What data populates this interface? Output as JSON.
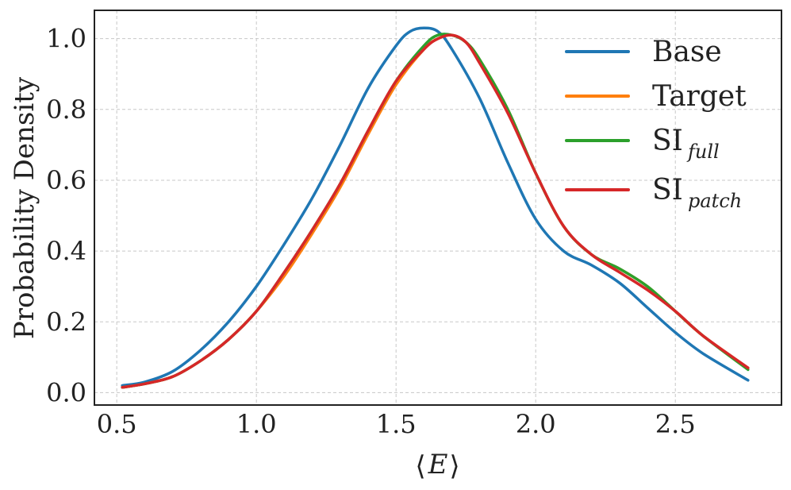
{
  "chart_data": {
    "type": "line",
    "title": "",
    "xlabel_base": "E",
    "ylabel": "Probability Density",
    "xlim": [
      0.42,
      2.88
    ],
    "ylim": [
      -0.035,
      1.08
    ],
    "xticks": [
      0.5,
      1.0,
      1.5,
      2.0,
      2.5
    ],
    "xtick_labels": [
      "0.5",
      "1.0",
      "1.5",
      "2.0",
      "2.5"
    ],
    "yticks": [
      0.0,
      0.2,
      0.4,
      0.6,
      0.8,
      1.0
    ],
    "ytick_labels": [
      "0.0",
      "0.2",
      "0.4",
      "0.6",
      "0.8",
      "1.0"
    ],
    "grid": true,
    "legend_position": "top-right",
    "series": [
      {
        "name": "Base",
        "name_main": "Base",
        "name_sub": "",
        "color": "#1f77b4",
        "x": [
          0.52,
          0.6,
          0.7,
          0.8,
          0.9,
          1.0,
          1.1,
          1.2,
          1.3,
          1.4,
          1.5,
          1.55,
          1.6,
          1.65,
          1.7,
          1.8,
          1.9,
          2.0,
          2.1,
          2.2,
          2.3,
          2.4,
          2.5,
          2.6,
          2.76
        ],
        "y": [
          0.02,
          0.03,
          0.06,
          0.12,
          0.2,
          0.3,
          0.42,
          0.55,
          0.7,
          0.86,
          0.98,
          1.02,
          1.03,
          1.02,
          0.97,
          0.83,
          0.65,
          0.49,
          0.4,
          0.36,
          0.31,
          0.24,
          0.17,
          0.11,
          0.035
        ]
      },
      {
        "name": "Target",
        "name_main": "Target",
        "name_sub": "",
        "color": "#ff7f0e",
        "x": [
          0.52,
          0.6,
          0.7,
          0.8,
          0.9,
          1.0,
          1.1,
          1.2,
          1.3,
          1.4,
          1.5,
          1.6,
          1.65,
          1.7,
          1.75,
          1.8,
          1.9,
          2.0,
          2.1,
          2.2,
          2.3,
          2.4,
          2.5,
          2.6,
          2.76
        ],
        "y": [
          0.015,
          0.025,
          0.045,
          0.09,
          0.15,
          0.23,
          0.33,
          0.45,
          0.58,
          0.73,
          0.87,
          0.97,
          1.0,
          1.01,
          0.99,
          0.94,
          0.8,
          0.62,
          0.47,
          0.39,
          0.35,
          0.3,
          0.23,
          0.16,
          0.07
        ]
      },
      {
        "name": "SI full",
        "name_main": "SI",
        "name_sub": "full",
        "color": "#2ca02c",
        "x": [
          0.52,
          0.6,
          0.7,
          0.8,
          0.9,
          1.0,
          1.1,
          1.2,
          1.3,
          1.4,
          1.5,
          1.6,
          1.65,
          1.7,
          1.75,
          1.8,
          1.9,
          2.0,
          2.1,
          2.2,
          2.3,
          2.4,
          2.5,
          2.6,
          2.76
        ],
        "y": [
          0.015,
          0.025,
          0.045,
          0.09,
          0.15,
          0.23,
          0.34,
          0.46,
          0.59,
          0.74,
          0.88,
          0.98,
          1.01,
          1.01,
          0.99,
          0.94,
          0.8,
          0.62,
          0.47,
          0.39,
          0.35,
          0.3,
          0.23,
          0.16,
          0.065
        ]
      },
      {
        "name": "SI patch",
        "name_main": "SI",
        "name_sub": "patch",
        "color": "#d62728",
        "x": [
          0.52,
          0.6,
          0.7,
          0.8,
          0.9,
          1.0,
          1.1,
          1.2,
          1.3,
          1.4,
          1.5,
          1.6,
          1.65,
          1.7,
          1.75,
          1.8,
          1.9,
          2.0,
          2.1,
          2.2,
          2.3,
          2.4,
          2.5,
          2.6,
          2.76
        ],
        "y": [
          0.015,
          0.025,
          0.045,
          0.09,
          0.15,
          0.23,
          0.34,
          0.46,
          0.59,
          0.74,
          0.88,
          0.97,
          1.0,
          1.01,
          0.99,
          0.93,
          0.79,
          0.62,
          0.47,
          0.39,
          0.34,
          0.29,
          0.23,
          0.16,
          0.07
        ]
      }
    ]
  }
}
